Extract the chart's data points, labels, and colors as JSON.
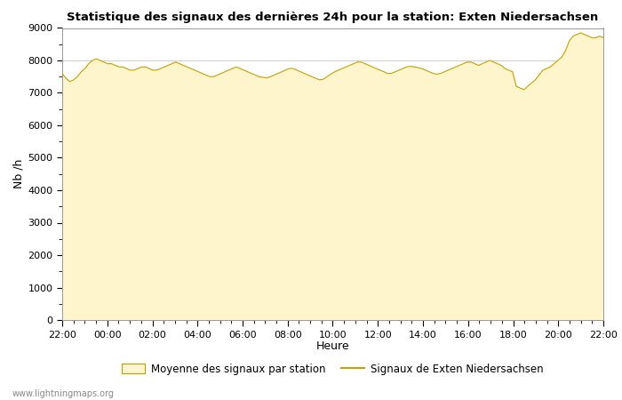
{
  "title": "Statistique des signaux des dernières 24h pour la station: Exten Niedersachsen",
  "xlabel": "Heure",
  "ylabel": "Nb /h",
  "ylim": [
    0,
    9000
  ],
  "yticks": [
    0,
    1000,
    2000,
    3000,
    4000,
    5000,
    6000,
    7000,
    8000,
    9000
  ],
  "xtick_labels": [
    "22:00",
    "00:00",
    "02:00",
    "04:00",
    "06:00",
    "08:00",
    "10:00",
    "12:00",
    "14:00",
    "16:00",
    "18:00",
    "20:00",
    "22:00"
  ],
  "fill_color": "#FFF5CC",
  "line_color": "#C8A000",
  "background_color": "#FFFFFF",
  "plot_bg_color": "#FFFFFF",
  "grid_color": "#C8C8C8",
  "watermark": "www.lightningmaps.org",
  "legend_fill_label": "Moyenne des signaux par station",
  "legend_line_label": "Signaux de Exten Niedersachsen",
  "avg_values": [
    7600,
    7450,
    7350,
    7400,
    7500,
    7650,
    7750,
    7900,
    8000,
    8050,
    8000,
    7950,
    7900,
    7900,
    7850,
    7800,
    7800,
    7750,
    7700,
    7700,
    7750,
    7800,
    7800,
    7750,
    7700,
    7700,
    7750,
    7800,
    7850,
    7900,
    7950,
    7900,
    7850,
    7800,
    7750,
    7700,
    7650,
    7600,
    7550,
    7500,
    7500,
    7550,
    7600,
    7650,
    7700,
    7750,
    7800,
    7750,
    7700,
    7650,
    7600,
    7550,
    7500,
    7480,
    7460,
    7500,
    7550,
    7600,
    7650,
    7700,
    7750,
    7750,
    7700,
    7650,
    7600,
    7550,
    7500,
    7450,
    7400,
    7420,
    7500,
    7580,
    7650,
    7700,
    7750,
    7800,
    7850,
    7900,
    7950,
    7950,
    7900,
    7850,
    7800,
    7750,
    7700,
    7650,
    7600,
    7600,
    7650,
    7700,
    7750,
    7800,
    7820,
    7800,
    7780,
    7750,
    7700,
    7650,
    7600,
    7580,
    7600,
    7650,
    7700,
    7750,
    7800,
    7850,
    7900,
    7950,
    7950,
    7900,
    7850,
    7900,
    7950,
    8000,
    7950,
    7900,
    7850,
    7750,
    7700,
    7650,
    7200,
    7150,
    7100,
    7200,
    7300,
    7400,
    7550,
    7700,
    7750,
    7800,
    7900,
    8000,
    8100,
    8300,
    8600,
    8750,
    8800,
    8850,
    8800,
    8750,
    8700,
    8700,
    8750,
    8700
  ],
  "station_values": [
    7600,
    7450,
    7350,
    7400,
    7500,
    7650,
    7750,
    7900,
    8000,
    8050,
    8000,
    7950,
    7900,
    7900,
    7850,
    7800,
    7800,
    7750,
    7700,
    7700,
    7750,
    7800,
    7800,
    7750,
    7700,
    7700,
    7750,
    7800,
    7850,
    7900,
    7950,
    7900,
    7850,
    7800,
    7750,
    7700,
    7650,
    7600,
    7550,
    7500,
    7500,
    7550,
    7600,
    7650,
    7700,
    7750,
    7800,
    7750,
    7700,
    7650,
    7600,
    7550,
    7500,
    7480,
    7460,
    7500,
    7550,
    7600,
    7650,
    7700,
    7750,
    7750,
    7700,
    7650,
    7600,
    7550,
    7500,
    7450,
    7400,
    7420,
    7500,
    7580,
    7650,
    7700,
    7750,
    7800,
    7850,
    7900,
    7950,
    7950,
    7900,
    7850,
    7800,
    7750,
    7700,
    7650,
    7600,
    7600,
    7650,
    7700,
    7750,
    7800,
    7820,
    7800,
    7780,
    7750,
    7700,
    7650,
    7600,
    7580,
    7600,
    7650,
    7700,
    7750,
    7800,
    7850,
    7900,
    7950,
    7950,
    7900,
    7850,
    7900,
    7950,
    8000,
    7950,
    7900,
    7850,
    7750,
    7700,
    7650,
    7200,
    7150,
    7100,
    7200,
    7300,
    7400,
    7550,
    7700,
    7750,
    7800,
    7900,
    8000,
    8100,
    8300,
    8600,
    8750,
    8800,
    8850,
    8800,
    8750,
    8700,
    8700,
    8750,
    8700
  ]
}
